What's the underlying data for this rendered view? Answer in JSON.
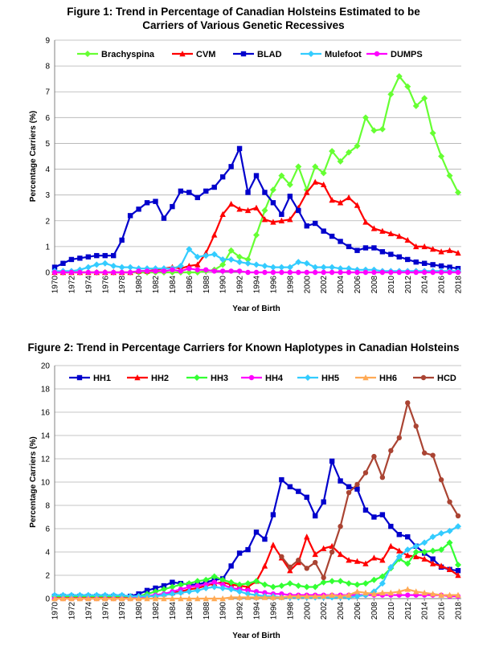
{
  "chart_data": [
    {
      "type": "line",
      "title_line1": "Figure 1: Trend in Percentage of Canadian Holsteins Estimated to be",
      "title_line2": "Carriers of Various Genetic Recessives",
      "xlabel": "Year of Birth",
      "ylabel": "Percentage Carriers (%)",
      "ylim": [
        0,
        9
      ],
      "yticks": [
        "0",
        "1",
        "2",
        "3",
        "4",
        "5",
        "6",
        "7",
        "8",
        "9"
      ],
      "xticks": [
        "1970",
        "1972",
        "1974",
        "1976",
        "1978",
        "1980",
        "1982",
        "1984",
        "1986",
        "1988",
        "1990",
        "1992",
        "1994",
        "1996",
        "1998",
        "2000",
        "2002",
        "2004",
        "2006",
        "2008",
        "2010",
        "2012",
        "2014",
        "2016",
        "2018"
      ],
      "legend": "top",
      "grid": true,
      "x": [
        1970,
        1971,
        1972,
        1973,
        1974,
        1975,
        1976,
        1977,
        1978,
        1979,
        1980,
        1981,
        1982,
        1983,
        1984,
        1985,
        1986,
        1987,
        1988,
        1989,
        1990,
        1991,
        1992,
        1993,
        1994,
        1995,
        1996,
        1997,
        1998,
        1999,
        2000,
        2001,
        2002,
        2003,
        2004,
        2005,
        2006,
        2007,
        2008,
        2009,
        2010,
        2011,
        2012,
        2013,
        2014,
        2015,
        2016,
        2017,
        2018
      ],
      "series": [
        {
          "name": "Brachyspina",
          "color": "#66ff33",
          "marker": "diamond",
          "values": [
            0,
            0,
            0,
            0,
            0,
            0,
            0,
            0,
            0,
            0,
            0,
            0,
            0,
            0,
            0,
            0,
            0,
            0,
            0.05,
            0.1,
            0.3,
            0.85,
            0.6,
            0.5,
            1.45,
            2.4,
            3.2,
            3.75,
            3.4,
            4.1,
            3.2,
            4.1,
            3.85,
            4.7,
            4.3,
            4.65,
            4.9,
            6.0,
            5.5,
            5.55,
            6.9,
            7.6,
            7.2,
            6.45,
            6.75,
            5.4,
            4.5,
            3.75,
            3.1
          ]
        },
        {
          "name": "CVM",
          "color": "#ff0000",
          "marker": "triangle",
          "values": [
            0,
            0,
            0,
            0,
            0,
            0,
            0,
            0,
            0,
            0,
            0.05,
            0.05,
            0.1,
            0.15,
            0.2,
            0.15,
            0.25,
            0.3,
            0.75,
            1.45,
            2.25,
            2.65,
            2.45,
            2.4,
            2.5,
            2.05,
            1.95,
            2.0,
            2.05,
            2.5,
            3.1,
            3.5,
            3.4,
            2.8,
            2.7,
            2.9,
            2.6,
            1.95,
            1.7,
            1.6,
            1.5,
            1.4,
            1.25,
            1.0,
            1.0,
            0.9,
            0.8,
            0.85,
            0.75
          ]
        },
        {
          "name": "BLAD",
          "color": "#0000cc",
          "marker": "square",
          "values": [
            0.2,
            0.35,
            0.5,
            0.55,
            0.6,
            0.65,
            0.65,
            0.65,
            1.25,
            2.2,
            2.45,
            2.7,
            2.75,
            2.1,
            2.55,
            3.15,
            3.1,
            2.9,
            3.15,
            3.3,
            3.7,
            4.1,
            4.8,
            3.1,
            3.75,
            3.1,
            2.7,
            2.25,
            2.95,
            2.4,
            1.8,
            1.9,
            1.6,
            1.4,
            1.2,
            1.0,
            0.85,
            0.95,
            0.95,
            0.8,
            0.7,
            0.6,
            0.5,
            0.4,
            0.35,
            0.3,
            0.25,
            0.2,
            0.15
          ]
        },
        {
          "name": "Mulefoot",
          "color": "#33ccff",
          "marker": "diamond",
          "values": [
            0.05,
            0.05,
            0.05,
            0.1,
            0.2,
            0.3,
            0.35,
            0.25,
            0.2,
            0.2,
            0.15,
            0.15,
            0.15,
            0.15,
            0.15,
            0.25,
            0.9,
            0.6,
            0.65,
            0.7,
            0.5,
            0.5,
            0.4,
            0.35,
            0.3,
            0.25,
            0.2,
            0.2,
            0.2,
            0.4,
            0.35,
            0.2,
            0.2,
            0.2,
            0.15,
            0.15,
            0.1,
            0.1,
            0.1,
            0.05,
            0.05,
            0.05,
            0.05,
            0.05,
            0.05,
            0.05,
            0.05,
            0.05,
            0.05
          ]
        },
        {
          "name": "DUMPS",
          "color": "#ff00ff",
          "marker": "circle",
          "values": [
            0,
            0,
            0,
            0,
            0,
            0,
            0,
            0,
            0,
            0,
            0.05,
            0.05,
            0.05,
            0.05,
            0.1,
            0.05,
            0.15,
            0.1,
            0.1,
            0.05,
            0.05,
            0.05,
            0.05,
            0,
            0,
            0,
            0,
            0,
            0,
            0,
            0,
            0,
            0,
            0,
            0,
            0,
            0,
            0,
            0,
            0,
            0,
            0,
            0,
            0,
            0,
            0,
            0,
            0,
            0
          ]
        }
      ]
    },
    {
      "type": "line",
      "title_line1": "Figure 2: Trend in Percentage Carriers for Known Haplotypes in Canadian Holsteins",
      "xlabel": "Year of Birth",
      "ylabel": "Percentage Carriers (%)",
      "ylim": [
        0,
        20
      ],
      "yticks": [
        "0",
        "2",
        "4",
        "6",
        "8",
        "10",
        "12",
        "14",
        "16",
        "18",
        "20"
      ],
      "xticks": [
        "1970",
        "1972",
        "1974",
        "1976",
        "1978",
        "1980",
        "1982",
        "1984",
        "1986",
        "1988",
        "1990",
        "1992",
        "1994",
        "1996",
        "1998",
        "2000",
        "2002",
        "2004",
        "2006",
        "2008",
        "2010",
        "2012",
        "2014",
        "2016",
        "2018"
      ],
      "legend": "top",
      "grid": true,
      "x": [
        1970,
        1971,
        1972,
        1973,
        1974,
        1975,
        1976,
        1977,
        1978,
        1979,
        1980,
        1981,
        1982,
        1983,
        1984,
        1985,
        1986,
        1987,
        1988,
        1989,
        1990,
        1991,
        1992,
        1993,
        1994,
        1995,
        1996,
        1997,
        1998,
        1999,
        2000,
        2001,
        2002,
        2003,
        2004,
        2005,
        2006,
        2007,
        2008,
        2009,
        2010,
        2011,
        2012,
        2013,
        2014,
        2015,
        2016,
        2017,
        2018
      ],
      "series": [
        {
          "name": "HH1",
          "color": "#0000cc",
          "marker": "square",
          "values": [
            0.2,
            0.2,
            0.2,
            0.2,
            0.2,
            0.2,
            0.2,
            0.2,
            0.2,
            0.2,
            0.4,
            0.7,
            0.9,
            1.1,
            1.4,
            1.3,
            1.2,
            1.2,
            1.4,
            1.6,
            1.7,
            2.8,
            3.9,
            4.2,
            5.7,
            5.1,
            7.2,
            10.2,
            9.6,
            9.2,
            8.7,
            7.1,
            8.3,
            11.8,
            10.1,
            9.6,
            9.4,
            7.6,
            7.0,
            7.2,
            6.2,
            5.5,
            5.3,
            4.5,
            3.9,
            3.4,
            2.7,
            2.5,
            2.4
          ]
        },
        {
          "name": "HH2",
          "color": "#ff0000",
          "marker": "triangle",
          "values": [
            0.1,
            0.1,
            0.1,
            0.1,
            0.1,
            0.1,
            0.1,
            0.1,
            0.1,
            0.1,
            0.1,
            0.2,
            0.3,
            0.4,
            0.5,
            0.6,
            0.8,
            0.9,
            1.1,
            1.3,
            1.4,
            1.2,
            1.1,
            1.0,
            1.5,
            2.8,
            4.6,
            3.5,
            2.4,
            3.1,
            5.3,
            3.8,
            4.3,
            4.5,
            3.8,
            3.3,
            3.2,
            3.0,
            3.5,
            3.3,
            4.5,
            4.1,
            3.7,
            3.6,
            3.4,
            3.0,
            2.8,
            2.5,
            2.0
          ]
        },
        {
          "name": "HH3",
          "color": "#33ff33",
          "marker": "diamond",
          "values": [
            0.2,
            0.2,
            0.2,
            0.2,
            0.2,
            0.2,
            0.2,
            0.2,
            0.2,
            0.2,
            0.2,
            0.4,
            0.6,
            0.8,
            1.0,
            1.2,
            1.3,
            1.5,
            1.6,
            1.9,
            1.6,
            1.4,
            1.2,
            1.3,
            1.5,
            1.2,
            1.0,
            1.1,
            1.3,
            1.1,
            1.0,
            1.0,
            1.4,
            1.5,
            1.5,
            1.3,
            1.2,
            1.3,
            1.6,
            1.9,
            2.6,
            3.4,
            3.0,
            4.0,
            4.0,
            4.1,
            4.2,
            4.8,
            2.9
          ]
        },
        {
          "name": "HH4",
          "color": "#ff00ff",
          "marker": "circle",
          "values": [
            0,
            0,
            0,
            0,
            0,
            0,
            0,
            0,
            0,
            0,
            0.1,
            0.2,
            0.3,
            0.4,
            0.6,
            0.8,
            1.0,
            1.1,
            1.2,
            1.4,
            1.2,
            0.9,
            0.8,
            0.7,
            0.6,
            0.5,
            0.4,
            0.4,
            0.3,
            0.3,
            0.3,
            0.3,
            0.3,
            0.3,
            0.3,
            0.3,
            0.3,
            0.3,
            0.3,
            0.3,
            0.3,
            0.3,
            0.3,
            0.3,
            0.3,
            0.3,
            0.3,
            0.2,
            0.2
          ]
        },
        {
          "name": "HH5",
          "color": "#33ccff",
          "marker": "diamond",
          "values": [
            0.3,
            0.3,
            0.3,
            0.3,
            0.3,
            0.3,
            0.3,
            0.3,
            0.3,
            0.2,
            0.2,
            0.2,
            0.2,
            0.3,
            0.4,
            0.5,
            0.6,
            0.7,
            0.9,
            1.0,
            0.9,
            0.8,
            0.6,
            0.4,
            0.3,
            0.2,
            0.2,
            0.1,
            0.1,
            0.1,
            0.1,
            0.1,
            0.1,
            0.1,
            0.1,
            0.1,
            0.2,
            0.3,
            0.6,
            1.3,
            2.7,
            3.6,
            4.2,
            4.5,
            4.8,
            5.3,
            5.6,
            5.8,
            6.2
          ]
        },
        {
          "name": "HH6",
          "color": "#ffaa55",
          "marker": "triangle",
          "values": [
            0,
            0,
            0,
            0,
            0,
            0,
            0,
            0,
            0,
            0,
            0,
            0,
            0,
            0,
            0,
            0,
            0,
            0,
            0,
            0,
            0,
            0.1,
            0.1,
            0.1,
            0.1,
            0.1,
            0.1,
            0.1,
            0.2,
            0.2,
            0.2,
            0.2,
            0.2,
            0.3,
            0.2,
            0.3,
            0.6,
            0.5,
            0.4,
            0.5,
            0.5,
            0.6,
            0.8,
            0.6,
            0.5,
            0.4,
            0.3,
            0.3,
            0.3
          ]
        },
        {
          "name": "HCD",
          "color": "#aa4433",
          "marker": "circle",
          "values": [
            null,
            null,
            null,
            null,
            null,
            null,
            null,
            null,
            null,
            null,
            null,
            null,
            null,
            null,
            null,
            null,
            null,
            null,
            null,
            null,
            null,
            null,
            null,
            null,
            null,
            null,
            null,
            3.6,
            2.7,
            3.3,
            2.6,
            3.1,
            1.8,
            4.0,
            6.2,
            9.1,
            9.8,
            10.8,
            12.2,
            10.4,
            12.7,
            13.8,
            16.8,
            14.8,
            12.5,
            12.3,
            10.2,
            8.3,
            7.1
          ]
        }
      ]
    }
  ]
}
